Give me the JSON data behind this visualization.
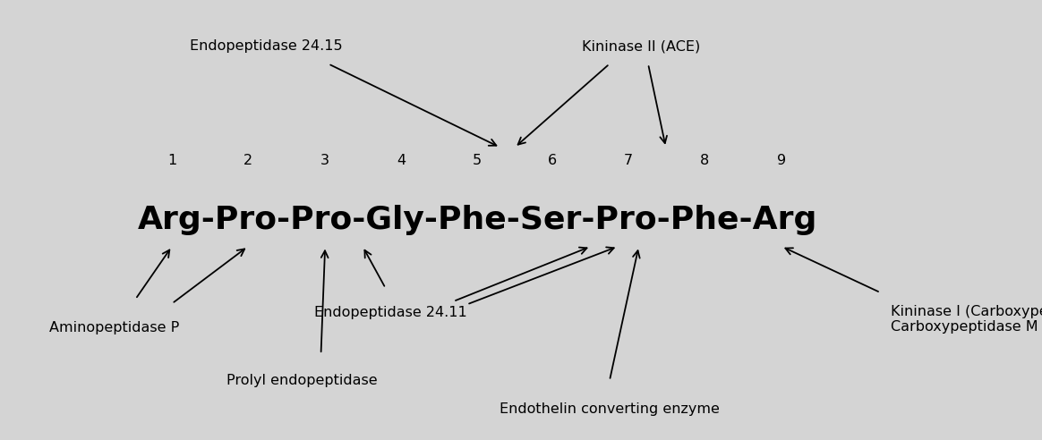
{
  "background_color": "#d4d4d4",
  "peptide_sequence": "Arg-Pro-Pro-Gly-Phe-Ser-Pro-Phe-Arg",
  "peptide_fontsize": 26,
  "peptide_fontweight": "bold",
  "numbers": [
    "1",
    "2",
    "3",
    "4",
    "5",
    "6",
    "7",
    "8",
    "9"
  ],
  "label_fontsize": 11.5,
  "arrow_lw": 1.3,
  "arrow_ms": 14
}
